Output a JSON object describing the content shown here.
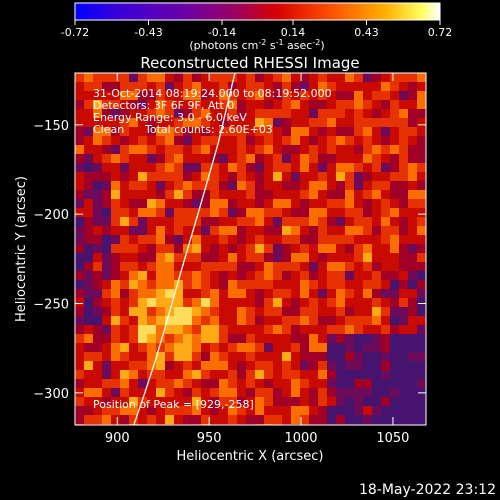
{
  "colorbar": {
    "ticks": [
      "-0.72",
      "-0.43",
      "-0.14",
      "0.14",
      "0.43",
      "0.72"
    ],
    "range": [
      -0.72,
      0.72
    ],
    "unit_label": {
      "base": "(photons cm",
      "exp1": "-2",
      "mid": " s",
      "exp2": "-1",
      "mid2": " asec",
      "exp3": "-2",
      "end": ")"
    }
  },
  "chart_data": {
    "type": "heatmap",
    "title": "Reconstructed RHESSI Image",
    "xlabel": "Heliocentric X (arcsec)",
    "ylabel": "Heliocentric Y (arcsec)",
    "xlim": [
      877,
      1068
    ],
    "ylim": [
      -318,
      -121
    ],
    "xticks": [
      900,
      950,
      1000,
      1050
    ],
    "yticks": [
      -150,
      -200,
      -250,
      -300
    ],
    "colormap": "hot (blue-purple low, red-orange-yellow-white high)",
    "limb_curve": [
      [
        909,
        -318
      ],
      [
        915,
        -300
      ],
      [
        921,
        -281
      ],
      [
        927,
        -260
      ],
      [
        935,
        -231
      ],
      [
        945,
        -196
      ],
      [
        955,
        -160
      ],
      [
        964,
        -121
      ]
    ],
    "annotations": {
      "date_range": "31-Oct-2014 08:19:24.000 to 08:19:52.000",
      "detectors": "Detectors: 3F 6F 9F, Att 0",
      "energy": "Energy Range: 3.0 - 6.0 keV",
      "clean_label": "Clean",
      "total_counts": "Total counts: 2.60E+03",
      "peak": "Position of Peak = [929,-258]"
    },
    "peak": [
      929,
      -258
    ]
  },
  "footer_date": "18-May-2022 23:12"
}
